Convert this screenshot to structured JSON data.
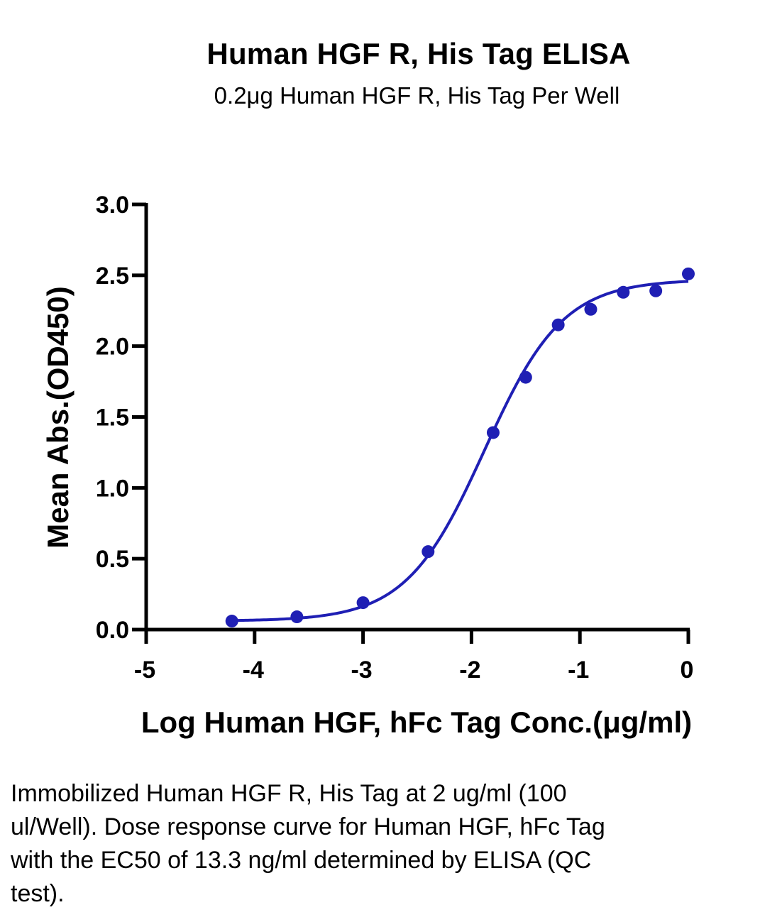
{
  "chart_data": {
    "type": "scatter",
    "title": "Human HGF R, His Tag ELISA",
    "subtitle": "0.2μg Human HGF R, His Tag Per Well",
    "xlabel": "Log  Human HGF, hFc Tag Conc.(μg/ml)",
    "ylabel": "Mean Abs.(OD450)",
    "xlim": [
      -5,
      0
    ],
    "ylim": [
      0,
      3.0
    ],
    "x_ticks": [
      -5,
      -4,
      -3,
      -2,
      -1,
      0
    ],
    "x_tick_labels": [
      "-5",
      "-4",
      "-3",
      "-2",
      "-1",
      "0"
    ],
    "y_ticks": [
      0,
      0.5,
      1.0,
      1.5,
      2.0,
      2.5,
      3.0
    ],
    "y_tick_labels": [
      "0.0",
      "0.5",
      "1.0",
      "1.5",
      "2.0",
      "2.5",
      "3.0"
    ],
    "grid": false,
    "series": [
      {
        "x": [
          -4.21,
          -3.61,
          -3.0,
          -2.4,
          -1.8,
          -1.5,
          -1.2,
          -0.9,
          -0.6,
          -0.3,
          0.0
        ],
        "y": [
          0.06,
          0.09,
          0.19,
          0.55,
          1.39,
          1.78,
          2.15,
          2.26,
          2.38,
          2.39,
          2.51
        ],
        "fit_curve": {
          "model": "4PL",
          "bottom": 0.06,
          "top": 2.47,
          "logEC50": -1.88,
          "hill_slope": 1.2,
          "x_range": [
            -4.21,
            0.0
          ]
        }
      }
    ],
    "colors": {
      "series": "#1f1fb4",
      "axis": "#000000"
    }
  },
  "caption": "Immobilized Human HGF R, His Tag at 2 ug/ml (100 ul/Well). Dose response curve for Human HGF, hFc Tag with the EC50 of 13.3 ng/ml determined by ELISA (QC test)."
}
